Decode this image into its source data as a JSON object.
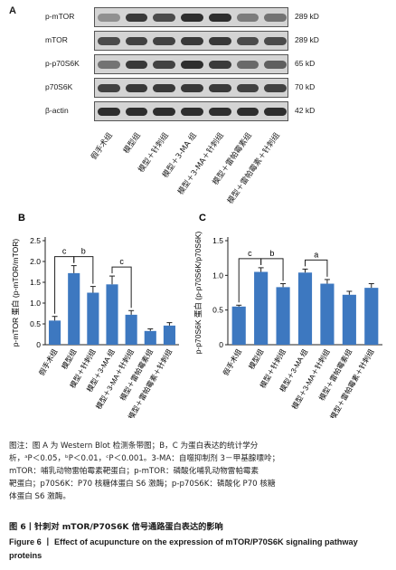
{
  "panel_a": {
    "letter": "A",
    "rows": [
      {
        "label": "p-mTOR",
        "kd": "289 kD",
        "intensities": [
          0.35,
          0.8,
          0.7,
          0.85,
          0.85,
          0.45,
          0.5
        ]
      },
      {
        "label": "mTOR",
        "kd": "289 kD",
        "intensities": [
          0.7,
          0.75,
          0.75,
          0.8,
          0.8,
          0.7,
          0.7
        ]
      },
      {
        "label": "p-p70S6K",
        "kd": "65 kD",
        "intensities": [
          0.5,
          0.8,
          0.75,
          0.85,
          0.8,
          0.55,
          0.6
        ]
      },
      {
        "label": "p70S6K",
        "kd": "70 kD",
        "intensities": [
          0.75,
          0.8,
          0.8,
          0.8,
          0.8,
          0.75,
          0.75
        ]
      },
      {
        "label": "β-actin",
        "kd": "42 kD",
        "intensities": [
          0.85,
          0.85,
          0.85,
          0.85,
          0.85,
          0.85,
          0.85
        ]
      }
    ],
    "lanes": [
      "假手术组",
      "模型组",
      "模型＋针刺组",
      "模型＋3-MA 组",
      "模型＋3-MA＋针刺组",
      "模型＋雷帕霉素组",
      "模型＋雷帕霉素＋针刺组"
    ]
  },
  "chart_data": [
    {
      "type": "bar",
      "panel": "B",
      "categories": [
        "假手术组",
        "模型组",
        "模型＋针刺组",
        "模型＋3-MA 组",
        "模型＋3-MA＋针刺组",
        "模型＋雷帕霉素组",
        "模型＋雷帕霉素＋针刺组"
      ],
      "values": [
        0.58,
        1.72,
        1.25,
        1.45,
        0.72,
        0.33,
        0.46
      ],
      "errors": [
        0.1,
        0.18,
        0.15,
        0.2,
        0.1,
        0.05,
        0.07
      ],
      "ylabel": "p-mTOR 蛋白 (p-mTOR/mTOR)",
      "ylim": [
        0,
        2.5
      ],
      "yticks": [
        "0",
        "0.5",
        "1.0",
        "1.5",
        "2.0",
        "2.5"
      ],
      "ytick_values": [
        0,
        0.5,
        1.0,
        1.5,
        2.0,
        2.5
      ],
      "bar_color": "#3d78c0",
      "significance": [
        {
          "from": 0,
          "to": 1,
          "label": "c"
        },
        {
          "from": 1,
          "to": 2,
          "label": "b"
        },
        {
          "from": 3,
          "to": 4,
          "label": "c"
        }
      ]
    },
    {
      "type": "bar",
      "panel": "C",
      "categories": [
        "假手术组",
        "模型组",
        "模型＋针刺组",
        "模型＋3-MA 组",
        "模型＋3-MA＋针刺组",
        "模型＋雷帕霉素组",
        "模型＋雷帕霉素＋针刺组"
      ],
      "values": [
        0.55,
        1.05,
        0.83,
        1.04,
        0.88,
        0.72,
        0.82
      ],
      "errors": [
        0.02,
        0.06,
        0.05,
        0.05,
        0.06,
        0.05,
        0.06
      ],
      "ylabel": "p-p70S6K 蛋白 (p-p70S6K/p70S6K)",
      "ylim": [
        0,
        1.5
      ],
      "yticks": [
        "0",
        "0.5",
        "1.0",
        "1.5"
      ],
      "ytick_values": [
        0,
        0.5,
        1.0,
        1.5
      ],
      "bar_color": "#3d78c0",
      "significance": [
        {
          "from": 0,
          "to": 1,
          "label": "c"
        },
        {
          "from": 1,
          "to": 2,
          "label": "b"
        },
        {
          "from": 3,
          "to": 4,
          "label": "a"
        }
      ]
    }
  ],
  "caption": {
    "lines": [
      "图注：图 A 为 Western Blot 检测条带图；B，C 为蛋白表达的统计学分",
      "析，ᵃP＜0.05，ᵇP＜0.01，ᶜP＜0.001。3-MA：自噬抑制剂 3－甲基腺嘌呤；",
      "mTOR：哺乳动物雷帕霉素靶蛋白；p-mTOR：磷酸化哺乳动物雷帕霉素",
      "靶蛋白；p70S6K：P70 核糖体蛋白 S6 激酶；p-p70S6K：磷酸化 P70 核糖",
      "体蛋白 S6 激酶。"
    ],
    "figure_cn": "图 6丨针刺对 mTOR/P70S6K 信号通路蛋白表达的影响",
    "figure_en": "Figure 6 丨 Effect of acupuncture on the expression of mTOR/P70S6K signaling pathway proteins"
  }
}
